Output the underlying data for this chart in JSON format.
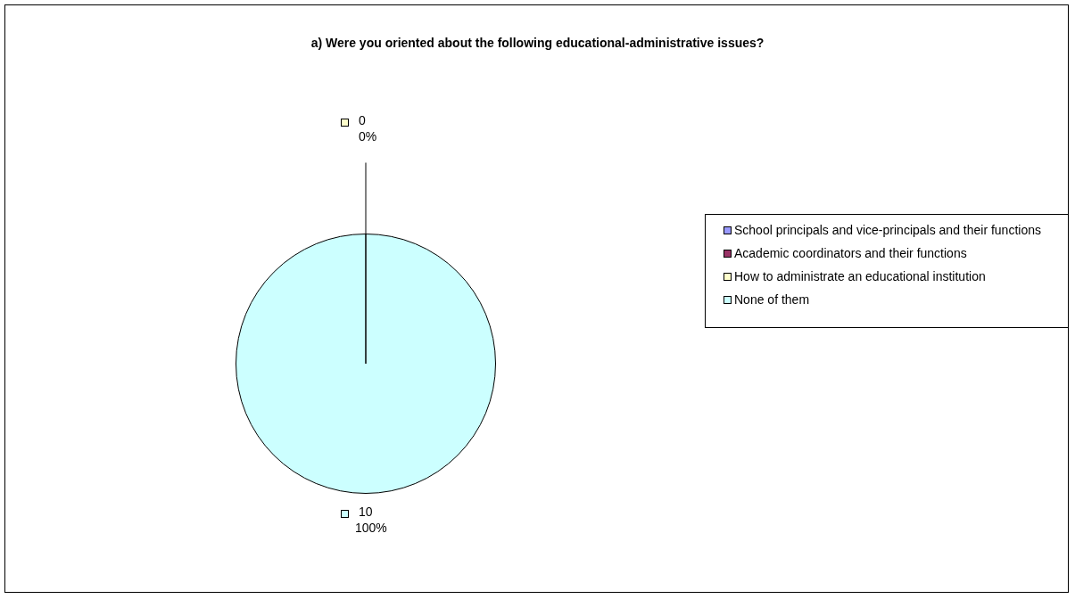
{
  "chart_data": {
    "type": "pie",
    "title": "a) Were you oriented about the following educational-administrative issues?",
    "categories": [
      "School principals and vice-principals and their functions",
      "Academic coordinators and their functions",
      "How to administrate an educational institution",
      "None of them"
    ],
    "values": [
      0,
      0,
      0,
      10
    ],
    "colors": [
      "#9999ff",
      "#993366",
      "#ffffcc",
      "#ccffff"
    ],
    "value_labels": [
      null,
      null,
      "0",
      "10"
    ],
    "annotations": [
      {
        "text": "0%",
        "x": "How to administrate an educational institution"
      },
      {
        "text": "100%",
        "x": "None of them"
      }
    ],
    "legend": "right"
  }
}
